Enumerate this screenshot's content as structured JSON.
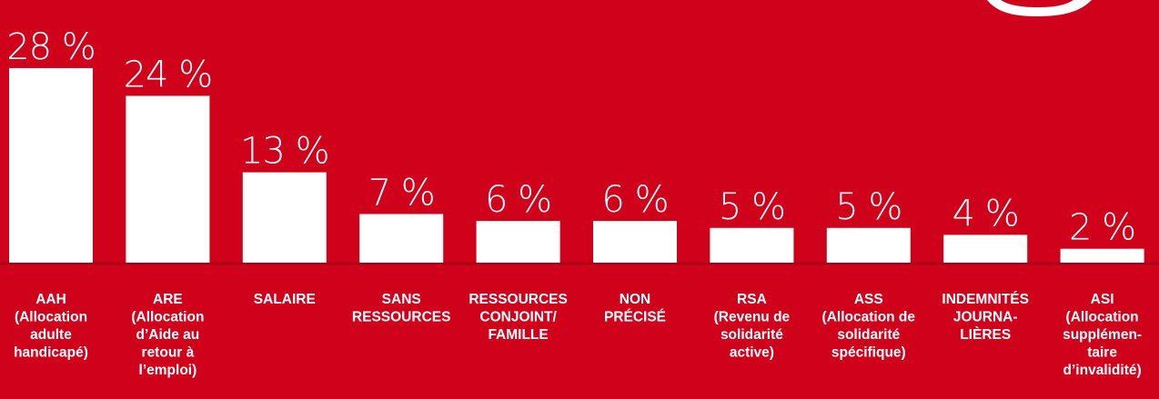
{
  "chart_data": {
    "type": "bar",
    "categories": [
      [
        "AAH",
        "(Allocation",
        "adulte",
        "handicapé)"
      ],
      [
        "ARE",
        "(Allocation",
        "d’Aide au",
        "retour à",
        "l’emploi)"
      ],
      [
        "SALAIRE"
      ],
      [
        "SANS",
        "RESSOURCES"
      ],
      [
        "RESSOURCES",
        "CONJOINT/",
        "FAMILLE"
      ],
      [
        "NON",
        "PRÉCISÉ"
      ],
      [
        "RSA",
        "(Revenu de",
        "solidarité",
        "active)"
      ],
      [
        "ASS",
        "(Allocation de",
        "solidarité",
        "spécifique)"
      ],
      [
        "INDEMNITÉS",
        "JOURNA-",
        "LIÈRES"
      ],
      [
        "ASI",
        "(Allocation",
        "supplémen-",
        "taire",
        "d’invalidité)"
      ]
    ],
    "values": [
      28,
      24,
      13,
      7,
      6,
      6,
      5,
      5,
      4,
      2
    ],
    "value_labels": [
      "28 %",
      "24 %",
      "13 %",
      "7 %",
      "6 %",
      "6 %",
      "5 %",
      "5 %",
      "4 %",
      "2 %"
    ],
    "color": "#ffffff",
    "ylim": [
      0,
      37.8
    ]
  }
}
